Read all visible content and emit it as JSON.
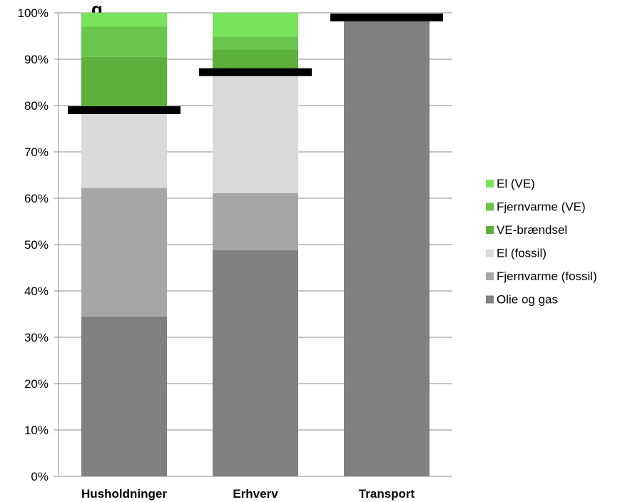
{
  "chart_data": {
    "type": "bar",
    "stacked": true,
    "title": "",
    "title_fragment": "g",
    "xlabel": "",
    "ylabel": "",
    "y_format": "percent",
    "ylim": [
      0,
      100
    ],
    "y_ticks": [
      0,
      10,
      20,
      30,
      40,
      50,
      60,
      70,
      80,
      90,
      100
    ],
    "y_tick_labels": [
      "0%",
      "10%",
      "20%",
      "30%",
      "40%",
      "50%",
      "60%",
      "70%",
      "80%",
      "90%",
      "100%"
    ],
    "grid": true,
    "legend_position": "right",
    "categories": [
      "Husholdninger",
      "Erhverv",
      "Transport"
    ],
    "series": [
      {
        "name": "Olie og gas",
        "color": "#808080",
        "values": [
          34.5,
          48.8,
          98.5
        ]
      },
      {
        "name": "Fjernvarme (fossil)",
        "color": "#a6a6a6",
        "values": [
          27.7,
          12.3,
          0
        ]
      },
      {
        "name": "El (fossil)",
        "color": "#d9d9d9",
        "values": [
          16.5,
          26.0,
          0
        ]
      },
      {
        "name": "VE-brændsel",
        "color": "#5cb03b",
        "values": [
          11.8,
          5.0,
          0
        ]
      },
      {
        "name": "Fjernvarme (VE)",
        "color": "#67c64b",
        "values": [
          6.5,
          2.8,
          0
        ]
      },
      {
        "name": "El (VE)",
        "color": "#78e45b",
        "values": [
          3.0,
          5.1,
          0
        ]
      }
    ],
    "target_markers": [
      79.0,
      87.2,
      99.0
    ],
    "target_marker_color": "#000000"
  }
}
